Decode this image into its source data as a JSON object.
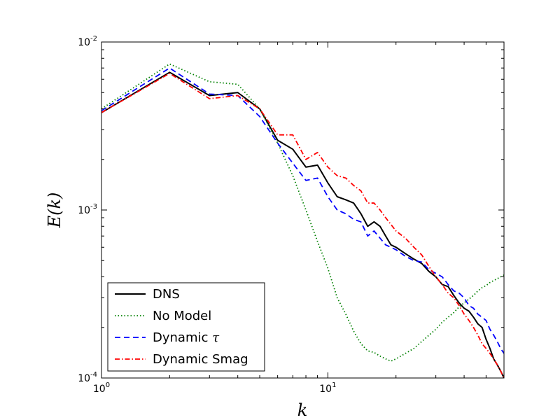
{
  "chart_data": {
    "type": "line",
    "xscale": "log",
    "yscale": "log",
    "xlim": [
      1,
      60
    ],
    "ylim": [
      0.0001,
      0.01
    ],
    "xlabel": "k",
    "ylabel": "E(k)",
    "x_ticks": [
      {
        "value": 1,
        "base": "10",
        "exp": "0"
      },
      {
        "value": 10,
        "base": "10",
        "exp": "1"
      }
    ],
    "y_ticks": [
      {
        "value": 0.0001,
        "base": "10",
        "exp": "-4"
      },
      {
        "value": 0.001,
        "base": "10",
        "exp": "-3"
      },
      {
        "value": 0.01,
        "base": "10",
        "exp": "-2"
      }
    ],
    "legend": {
      "location": "lower-left"
    },
    "series": [
      {
        "name": "DNS",
        "label_main": "DNS",
        "label_sym": "",
        "color": "#000000",
        "style": "solid",
        "points": [
          [
            1,
            0.0038
          ],
          [
            2,
            0.0066
          ],
          [
            3,
            0.0048
          ],
          [
            4,
            0.005
          ],
          [
            5,
            0.004
          ],
          [
            6,
            0.0026
          ],
          [
            7,
            0.0023
          ],
          [
            8,
            0.0018
          ],
          [
            9,
            0.00185
          ],
          [
            10,
            0.00145
          ],
          [
            11,
            0.0012
          ],
          [
            12,
            0.00115
          ],
          [
            13,
            0.0011
          ],
          [
            14,
            0.00095
          ],
          [
            15,
            0.0008
          ],
          [
            16,
            0.00085
          ],
          [
            17,
            0.0008
          ],
          [
            18,
            0.0007
          ],
          [
            19,
            0.00062
          ],
          [
            20,
            0.0006
          ],
          [
            22,
            0.00055
          ],
          [
            24,
            0.00051
          ],
          [
            26,
            0.00048
          ],
          [
            28,
            0.00043
          ],
          [
            30,
            0.0004
          ],
          [
            32,
            0.00036
          ],
          [
            34,
            0.00035
          ],
          [
            36,
            0.00031
          ],
          [
            38,
            0.00028
          ],
          [
            40,
            0.00026
          ],
          [
            42,
            0.00025
          ],
          [
            44,
            0.00023
          ],
          [
            46,
            0.00021
          ],
          [
            48,
            0.0002
          ],
          [
            50,
            0.00017
          ],
          [
            52,
            0.00015
          ],
          [
            54,
            0.00013
          ],
          [
            56,
            0.00012
          ],
          [
            58,
            0.00011
          ],
          [
            60,
            0.0001
          ]
        ]
      },
      {
        "name": "No Model",
        "label_main": "No Model",
        "label_sym": "",
        "color": "#008000",
        "style": "dotted",
        "points": [
          [
            1,
            0.004
          ],
          [
            2,
            0.0074
          ],
          [
            3,
            0.0058
          ],
          [
            4,
            0.0056
          ],
          [
            5,
            0.004
          ],
          [
            6,
            0.0025
          ],
          [
            7,
            0.0016
          ],
          [
            8,
            0.001
          ],
          [
            9,
            0.00065
          ],
          [
            10,
            0.00045
          ],
          [
            11,
            0.0003
          ],
          [
            12,
            0.00024
          ],
          [
            13,
            0.00019
          ],
          [
            14,
            0.00016
          ],
          [
            15,
            0.000145
          ],
          [
            16,
            0.000142
          ],
          [
            17,
            0.000135
          ],
          [
            18,
            0.00013
          ],
          [
            19,
            0.000126
          ],
          [
            20,
            0.00013
          ],
          [
            22,
            0.00014
          ],
          [
            24,
            0.00015
          ],
          [
            26,
            0.000165
          ],
          [
            28,
            0.00018
          ],
          [
            30,
            0.000195
          ],
          [
            32,
            0.000215
          ],
          [
            34,
            0.00023
          ],
          [
            36,
            0.000245
          ],
          [
            38,
            0.000265
          ],
          [
            40,
            0.00028
          ],
          [
            42,
            0.000295
          ],
          [
            44,
            0.00031
          ],
          [
            46,
            0.00033
          ],
          [
            48,
            0.000345
          ],
          [
            50,
            0.000355
          ],
          [
            52,
            0.00037
          ],
          [
            54,
            0.00038
          ],
          [
            56,
            0.00039
          ],
          [
            58,
            0.0004
          ],
          [
            60,
            0.00041
          ]
        ]
      },
      {
        "name": "Dynamic tau",
        "label_main": "Dynamic ",
        "label_sym": "τ",
        "color": "#0000ff",
        "style": "dashed",
        "points": [
          [
            1,
            0.0039
          ],
          [
            2,
            0.007
          ],
          [
            3,
            0.0049
          ],
          [
            4,
            0.0048
          ],
          [
            5,
            0.0036
          ],
          [
            6,
            0.0025
          ],
          [
            7,
            0.0019
          ],
          [
            8,
            0.0015
          ],
          [
            9,
            0.00155
          ],
          [
            10,
            0.0012
          ],
          [
            11,
            0.001
          ],
          [
            12,
            0.00095
          ],
          [
            13,
            0.00088
          ],
          [
            14,
            0.00085
          ],
          [
            15,
            0.0007
          ],
          [
            16,
            0.00075
          ],
          [
            17,
            0.00068
          ],
          [
            18,
            0.00062
          ],
          [
            19,
            0.0006
          ],
          [
            20,
            0.00058
          ],
          [
            22,
            0.00053
          ],
          [
            24,
            0.0005
          ],
          [
            26,
            0.00049
          ],
          [
            28,
            0.00044
          ],
          [
            30,
            0.00042
          ],
          [
            32,
            0.0004
          ],
          [
            34,
            0.00036
          ],
          [
            36,
            0.00033
          ],
          [
            38,
            0.00032
          ],
          [
            40,
            0.0003
          ],
          [
            42,
            0.00027
          ],
          [
            44,
            0.00026
          ],
          [
            46,
            0.00024
          ],
          [
            48,
            0.00023
          ],
          [
            50,
            0.00022
          ],
          [
            52,
            0.000195
          ],
          [
            54,
            0.00018
          ],
          [
            56,
            0.000165
          ],
          [
            58,
            0.00015
          ],
          [
            60,
            0.00014
          ]
        ]
      },
      {
        "name": "Dynamic Smag",
        "label_main": "Dynamic Smag",
        "label_sym": "",
        "color": "#ff0000",
        "style": "dashdot",
        "points": [
          [
            1,
            0.0038
          ],
          [
            2,
            0.0065
          ],
          [
            3,
            0.0046
          ],
          [
            4,
            0.0048
          ],
          [
            5,
            0.004
          ],
          [
            6,
            0.0028
          ],
          [
            7,
            0.0028
          ],
          [
            8,
            0.002
          ],
          [
            9,
            0.0022
          ],
          [
            10,
            0.0018
          ],
          [
            11,
            0.0016
          ],
          [
            12,
            0.00155
          ],
          [
            13,
            0.0014
          ],
          [
            14,
            0.0013
          ],
          [
            15,
            0.0011
          ],
          [
            16,
            0.0011
          ],
          [
            17,
            0.001
          ],
          [
            18,
            0.0009
          ],
          [
            19,
            0.00082
          ],
          [
            20,
            0.00075
          ],
          [
            22,
            0.00068
          ],
          [
            24,
            0.0006
          ],
          [
            26,
            0.00054
          ],
          [
            28,
            0.00046
          ],
          [
            30,
            0.0004
          ],
          [
            32,
            0.00036
          ],
          [
            34,
            0.00032
          ],
          [
            36,
            0.0003
          ],
          [
            38,
            0.00027
          ],
          [
            40,
            0.00024
          ],
          [
            42,
            0.00022
          ],
          [
            44,
            0.0002
          ],
          [
            46,
            0.00018
          ],
          [
            48,
            0.00016
          ],
          [
            50,
            0.00015
          ],
          [
            52,
            0.00014
          ],
          [
            54,
            0.00013
          ],
          [
            56,
            0.00012
          ],
          [
            58,
            0.00011
          ],
          [
            60,
            0.0001
          ]
        ]
      }
    ]
  }
}
